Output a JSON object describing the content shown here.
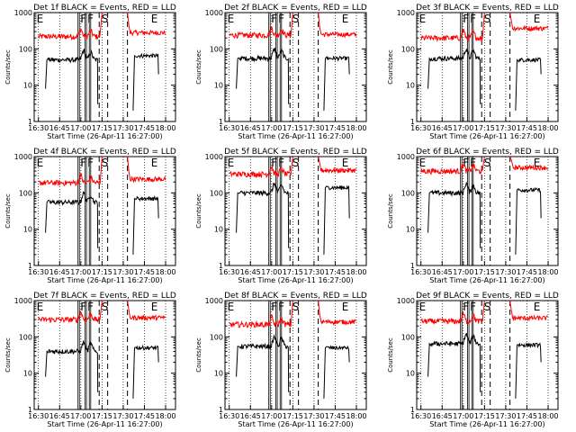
{
  "figure": {
    "xlabel": "Start Time (26-Apr-11 16:27:00)",
    "ylabel": "Counts/sec",
    "x_tick_labels": [
      "16:30",
      "16:45",
      "17:00",
      "17:15",
      "17:30",
      "17:45",
      "18:00"
    ],
    "y_tick_labels": [
      "1",
      "10",
      "100",
      "1000"
    ],
    "region_markers": [
      "E",
      "F",
      "F",
      "S",
      "E"
    ],
    "colors": {
      "events": "#000000",
      "lld": "#ff0000",
      "background": "#ffffff"
    }
  },
  "chart_data": [
    {
      "type": "line",
      "title": "Det 1f BLACK = Events, RED = LLD",
      "xlim": [
        "16:27",
        "18:07"
      ],
      "ylim": [
        1,
        1000
      ],
      "yscale": "log",
      "events_level": 50,
      "lld_level": 220,
      "events_late": 65,
      "lld_late": 280,
      "series": [
        {
          "name": "Events",
          "color": "#000000",
          "x": [
            "16:36",
            "16:50",
            "16:58",
            "17:02",
            "17:05",
            "17:07",
            "17:10",
            "17:12",
            "17:38",
            "17:55"
          ],
          "y": [
            45,
            50,
            55,
            75,
            55,
            90,
            65,
            55,
            80,
            65
          ]
        },
        {
          "name": "LLD",
          "color": "#ff0000",
          "x": [
            "16:30",
            "16:50",
            "17:02",
            "17:07",
            "17:12",
            "17:15",
            "17:17",
            "17:30",
            "17:33",
            "18:00"
          ],
          "y": [
            220,
            200,
            260,
            280,
            240,
            1000,
            1000,
            1000,
            450,
            280
          ]
        }
      ]
    },
    {
      "type": "line",
      "title": "Det 2f BLACK = Events, RED = LLD",
      "xlim": [
        "16:27",
        "18:07"
      ],
      "ylim": [
        1,
        1000
      ],
      "yscale": "log",
      "events_level": 55,
      "lld_level": 240,
      "events_late": 55,
      "lld_late": 250,
      "series": [
        {
          "name": "Events",
          "color": "#000000",
          "x": [
            "16:36",
            "16:50",
            "16:58",
            "17:02",
            "17:05",
            "17:07",
            "17:10",
            "17:12",
            "17:38",
            "17:55"
          ],
          "y": [
            55,
            55,
            60,
            90,
            60,
            100,
            70,
            60,
            55,
            50
          ]
        },
        {
          "name": "LLD",
          "color": "#ff0000",
          "x": [
            "16:30",
            "16:50",
            "17:02",
            "17:07",
            "17:12",
            "17:15",
            "17:17",
            "17:30",
            "17:33",
            "18:00"
          ],
          "y": [
            240,
            230,
            290,
            320,
            250,
            1000,
            1000,
            1000,
            400,
            250
          ]
        }
      ]
    },
    {
      "type": "line",
      "title": "Det 3f BLACK = Events, RED = LLD",
      "xlim": [
        "16:27",
        "18:07"
      ],
      "ylim": [
        1,
        1000
      ],
      "yscale": "log",
      "events_level": 55,
      "lld_level": 200,
      "events_late": 50,
      "lld_late": 370,
      "series": [
        {
          "name": "Events",
          "color": "#000000",
          "x": [
            "16:36",
            "16:50",
            "16:58",
            "17:02",
            "17:05",
            "17:07",
            "17:10",
            "17:12",
            "17:38",
            "17:55"
          ],
          "y": [
            55,
            55,
            60,
            75,
            60,
            85,
            70,
            60,
            50,
            45
          ]
        },
        {
          "name": "LLD",
          "color": "#ff0000",
          "x": [
            "16:30",
            "16:50",
            "17:02",
            "17:07",
            "17:12",
            "17:15",
            "17:17",
            "17:30",
            "17:33",
            "18:00"
          ],
          "y": [
            200,
            190,
            220,
            240,
            210,
            1000,
            1000,
            1000,
            600,
            370
          ]
        }
      ]
    },
    {
      "type": "line",
      "title": "Det 4f BLACK = Events, RED = LLD",
      "xlim": [
        "16:27",
        "18:07"
      ],
      "ylim": [
        1,
        1000
      ],
      "yscale": "log",
      "events_level": 55,
      "lld_level": 190,
      "events_late": 70,
      "lld_late": 240,
      "series": [
        {
          "name": "Events",
          "color": "#000000",
          "x": [
            "16:36",
            "16:50",
            "16:58",
            "17:02",
            "17:05",
            "17:07",
            "17:10",
            "17:12",
            "17:38",
            "17:55"
          ],
          "y": [
            50,
            60,
            75,
            120,
            80,
            140,
            90,
            70,
            80,
            70
          ]
        },
        {
          "name": "LLD",
          "color": "#ff0000",
          "x": [
            "16:30",
            "16:50",
            "17:02",
            "17:07",
            "17:12",
            "17:15",
            "17:17",
            "17:30",
            "17:33",
            "18:00"
          ],
          "y": [
            190,
            180,
            230,
            280,
            210,
            1000,
            1000,
            1000,
            400,
            240
          ]
        }
      ]
    },
    {
      "type": "line",
      "title": "Det 5f BLACK = Events, RED = LLD",
      "xlim": [
        "16:27",
        "18:07"
      ],
      "ylim": [
        1,
        1000
      ],
      "yscale": "log",
      "events_level": 100,
      "lld_level": 330,
      "events_late": 140,
      "lld_late": 420,
      "series": [
        {
          "name": "Events",
          "color": "#000000",
          "x": [
            "16:36",
            "16:50",
            "16:58",
            "17:02",
            "17:05",
            "17:07",
            "17:10",
            "17:12",
            "17:38",
            "17:55"
          ],
          "y": [
            100,
            110,
            120,
            220,
            140,
            200,
            150,
            120,
            160,
            140
          ]
        },
        {
          "name": "LLD",
          "color": "#ff0000",
          "x": [
            "16:30",
            "16:50",
            "17:02",
            "17:07",
            "17:12",
            "17:15",
            "17:17",
            "17:30",
            "17:33",
            "18:00"
          ],
          "y": [
            330,
            330,
            350,
            450,
            340,
            1000,
            1000,
            1000,
            500,
            420
          ]
        }
      ]
    },
    {
      "type": "line",
      "title": "Det 6f BLACK = Events, RED = LLD",
      "xlim": [
        "16:27",
        "18:07"
      ],
      "ylim": [
        1,
        1000
      ],
      "yscale": "log",
      "events_level": 100,
      "lld_level": 400,
      "events_late": 120,
      "lld_late": 500,
      "series": [
        {
          "name": "Events",
          "color": "#000000",
          "x": [
            "16:36",
            "16:50",
            "16:58",
            "17:02",
            "17:05",
            "17:07",
            "17:10",
            "17:12",
            "17:38",
            "17:55"
          ],
          "y": [
            100,
            110,
            130,
            250,
            160,
            200,
            150,
            120,
            110,
            120
          ]
        },
        {
          "name": "LLD",
          "color": "#ff0000",
          "x": [
            "16:30",
            "16:50",
            "17:02",
            "17:07",
            "17:12",
            "17:15",
            "17:17",
            "17:30",
            "17:33",
            "18:00"
          ],
          "y": [
            400,
            390,
            410,
            500,
            420,
            1000,
            1000,
            1000,
            600,
            500
          ]
        }
      ]
    },
    {
      "type": "line",
      "title": "Det 7f BLACK = Events, RED = LLD",
      "xlim": [
        "16:27",
        "18:07"
      ],
      "ylim": [
        1,
        1000
      ],
      "yscale": "log",
      "events_level": 40,
      "lld_level": 300,
      "events_late": 50,
      "lld_late": 340,
      "series": [
        {
          "name": "Events",
          "color": "#000000",
          "x": [
            "16:36",
            "16:50",
            "16:58",
            "17:02",
            "17:05",
            "17:07",
            "17:10",
            "17:12",
            "17:38",
            "17:55"
          ],
          "y": [
            40,
            45,
            55,
            100,
            60,
            80,
            60,
            50,
            50,
            45
          ]
        },
        {
          "name": "LLD",
          "color": "#ff0000",
          "x": [
            "16:30",
            "16:50",
            "17:02",
            "17:07",
            "17:12",
            "17:15",
            "17:17",
            "17:30",
            "17:33",
            "18:00"
          ],
          "y": [
            300,
            300,
            330,
            400,
            320,
            1000,
            1000,
            1000,
            600,
            340
          ]
        }
      ]
    },
    {
      "type": "line",
      "title": "Det 8f BLACK = Events, RED = LLD",
      "xlim": [
        "16:27",
        "18:07"
      ],
      "ylim": [
        1,
        1000
      ],
      "yscale": "log",
      "events_level": 55,
      "lld_level": 220,
      "events_late": 50,
      "lld_late": 260,
      "series": [
        {
          "name": "Events",
          "color": "#000000",
          "x": [
            "16:36",
            "16:50",
            "16:58",
            "17:02",
            "17:05",
            "17:07",
            "17:10",
            "17:12",
            "17:38",
            "17:55"
          ],
          "y": [
            55,
            55,
            65,
            95,
            60,
            80,
            65,
            55,
            55,
            45
          ]
        },
        {
          "name": "LLD",
          "color": "#ff0000",
          "x": [
            "16:30",
            "16:50",
            "17:02",
            "17:07",
            "17:12",
            "17:15",
            "17:17",
            "17:30",
            "17:33",
            "18:00"
          ],
          "y": [
            220,
            210,
            260,
            330,
            230,
            1000,
            1000,
            1000,
            450,
            260
          ]
        }
      ]
    },
    {
      "type": "line",
      "title": "Det 9f BLACK = Events, RED = LLD",
      "xlim": [
        "16:27",
        "18:07"
      ],
      "ylim": [
        1,
        1000
      ],
      "yscale": "log",
      "events_level": 65,
      "lld_level": 270,
      "events_late": 60,
      "lld_late": 330,
      "series": [
        {
          "name": "Events",
          "color": "#000000",
          "x": [
            "16:36",
            "16:50",
            "16:58",
            "17:02",
            "17:05",
            "17:07",
            "17:10",
            "17:12",
            "17:38",
            "17:55"
          ],
          "y": [
            65,
            65,
            75,
            130,
            80,
            100,
            80,
            65,
            65,
            60
          ]
        },
        {
          "name": "LLD",
          "color": "#ff0000",
          "x": [
            "16:30",
            "16:50",
            "17:02",
            "17:07",
            "17:12",
            "17:15",
            "17:17",
            "17:30",
            "17:33",
            "18:00"
          ],
          "y": [
            270,
            260,
            300,
            400,
            280,
            1000,
            1000,
            1000,
            550,
            330
          ]
        }
      ]
    }
  ]
}
